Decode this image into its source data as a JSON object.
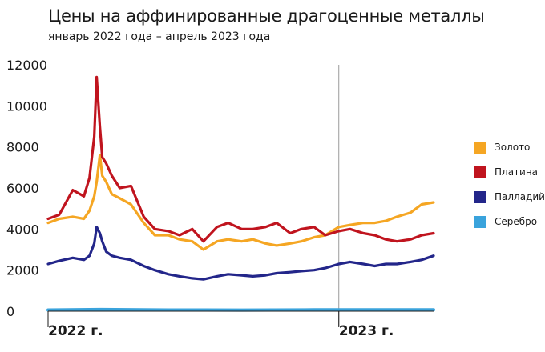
{
  "chart_data": {
    "type": "line",
    "title": "Цены на аффинированные драгоценные металлы",
    "subtitle": "январь 2022 года – апрель 2023 года",
    "xlabel": "",
    "ylabel": "",
    "ylim": [
      0,
      12000
    ],
    "yticks": [
      "0",
      "2000",
      "4000",
      "6000",
      "8000",
      "10000",
      "12000"
    ],
    "ytick_values": [
      0,
      2000,
      4000,
      6000,
      8000,
      10000,
      12000
    ],
    "x_axis_labels": [
      {
        "label": "2022 г.",
        "date": "2022-01-01"
      },
      {
        "label": "2023 г.",
        "date": "2023-01-01"
      }
    ],
    "x_range": [
      "2022-01-01",
      "2023-04-30"
    ],
    "vertical_marker": "2023-01-01",
    "grid": false,
    "legend_position": "right",
    "series": [
      {
        "name": "Золото",
        "color": "#f5a623",
        "x": [
          "2022-01-01",
          "2022-01-15",
          "2022-02-01",
          "2022-02-15",
          "2022-02-22",
          "2022-02-28",
          "2022-03-03",
          "2022-03-07",
          "2022-03-10",
          "2022-03-15",
          "2022-03-22",
          "2022-04-01",
          "2022-04-15",
          "2022-05-01",
          "2022-05-15",
          "2022-06-01",
          "2022-06-15",
          "2022-07-01",
          "2022-07-15",
          "2022-08-01",
          "2022-08-15",
          "2022-09-01",
          "2022-09-15",
          "2022-10-01",
          "2022-10-15",
          "2022-11-01",
          "2022-11-15",
          "2022-12-01",
          "2022-12-15",
          "2023-01-01",
          "2023-01-15",
          "2023-02-01",
          "2023-02-15",
          "2023-03-01",
          "2023-03-15",
          "2023-04-01",
          "2023-04-15",
          "2023-04-30"
        ],
        "values": [
          4300,
          4500,
          4600,
          4500,
          4900,
          5600,
          6300,
          7600,
          6600,
          6300,
          5700,
          5500,
          5200,
          4300,
          3700,
          3700,
          3500,
          3400,
          3000,
          3400,
          3500,
          3400,
          3500,
          3300,
          3200,
          3300,
          3400,
          3600,
          3700,
          4100,
          4200,
          4300,
          4300,
          4400,
          4600,
          4800,
          5200,
          5300
        ]
      },
      {
        "name": "Платина",
        "color": "#c0141e",
        "x": [
          "2022-01-01",
          "2022-01-15",
          "2022-02-01",
          "2022-02-15",
          "2022-02-22",
          "2022-02-28",
          "2022-03-03",
          "2022-03-07",
          "2022-03-10",
          "2022-03-15",
          "2022-03-22",
          "2022-04-01",
          "2022-04-15",
          "2022-05-01",
          "2022-05-15",
          "2022-06-01",
          "2022-06-15",
          "2022-07-01",
          "2022-07-15",
          "2022-08-01",
          "2022-08-15",
          "2022-09-01",
          "2022-09-15",
          "2022-10-01",
          "2022-10-15",
          "2022-11-01",
          "2022-11-15",
          "2022-12-01",
          "2022-12-15",
          "2023-01-01",
          "2023-01-15",
          "2023-02-01",
          "2023-02-15",
          "2023-03-01",
          "2023-03-15",
          "2023-04-01",
          "2023-04-15",
          "2023-04-30"
        ],
        "values": [
          4500,
          4700,
          5900,
          5600,
          6500,
          8500,
          11400,
          9000,
          7500,
          7200,
          6600,
          6000,
          6100,
          4600,
          4000,
          3900,
          3700,
          4000,
          3400,
          4100,
          4300,
          4000,
          4000,
          4100,
          4300,
          3800,
          4000,
          4100,
          3700,
          3900,
          4000,
          3800,
          3700,
          3500,
          3400,
          3500,
          3700,
          3800
        ]
      },
      {
        "name": "Палладий",
        "color": "#23268a",
        "x": [
          "2022-01-01",
          "2022-01-15",
          "2022-02-01",
          "2022-02-15",
          "2022-02-22",
          "2022-02-28",
          "2022-03-03",
          "2022-03-07",
          "2022-03-10",
          "2022-03-15",
          "2022-03-22",
          "2022-04-01",
          "2022-04-15",
          "2022-05-01",
          "2022-05-15",
          "2022-06-01",
          "2022-06-15",
          "2022-07-01",
          "2022-07-15",
          "2022-08-01",
          "2022-08-15",
          "2022-09-01",
          "2022-09-15",
          "2022-10-01",
          "2022-10-15",
          "2022-11-01",
          "2022-11-15",
          "2022-12-01",
          "2022-12-15",
          "2023-01-01",
          "2023-01-15",
          "2023-02-01",
          "2023-02-15",
          "2023-03-01",
          "2023-03-15",
          "2023-04-01",
          "2023-04-15",
          "2023-04-30"
        ],
        "values": [
          2300,
          2450,
          2600,
          2500,
          2700,
          3300,
          4100,
          3800,
          3400,
          2900,
          2700,
          2600,
          2500,
          2200,
          2000,
          1800,
          1700,
          1600,
          1550,
          1700,
          1800,
          1750,
          1700,
          1750,
          1850,
          1900,
          1950,
          2000,
          2100,
          2300,
          2400,
          2300,
          2200,
          2300,
          2300,
          2400,
          2500,
          2700
        ]
      },
      {
        "name": "Серебро",
        "color": "#3aa3dc",
        "x": [
          "2022-01-01",
          "2022-03-07",
          "2022-06-01",
          "2022-09-01",
          "2022-12-01",
          "2023-03-01",
          "2023-04-30"
        ],
        "values": [
          60,
          80,
          60,
          55,
          65,
          65,
          70
        ]
      }
    ]
  }
}
